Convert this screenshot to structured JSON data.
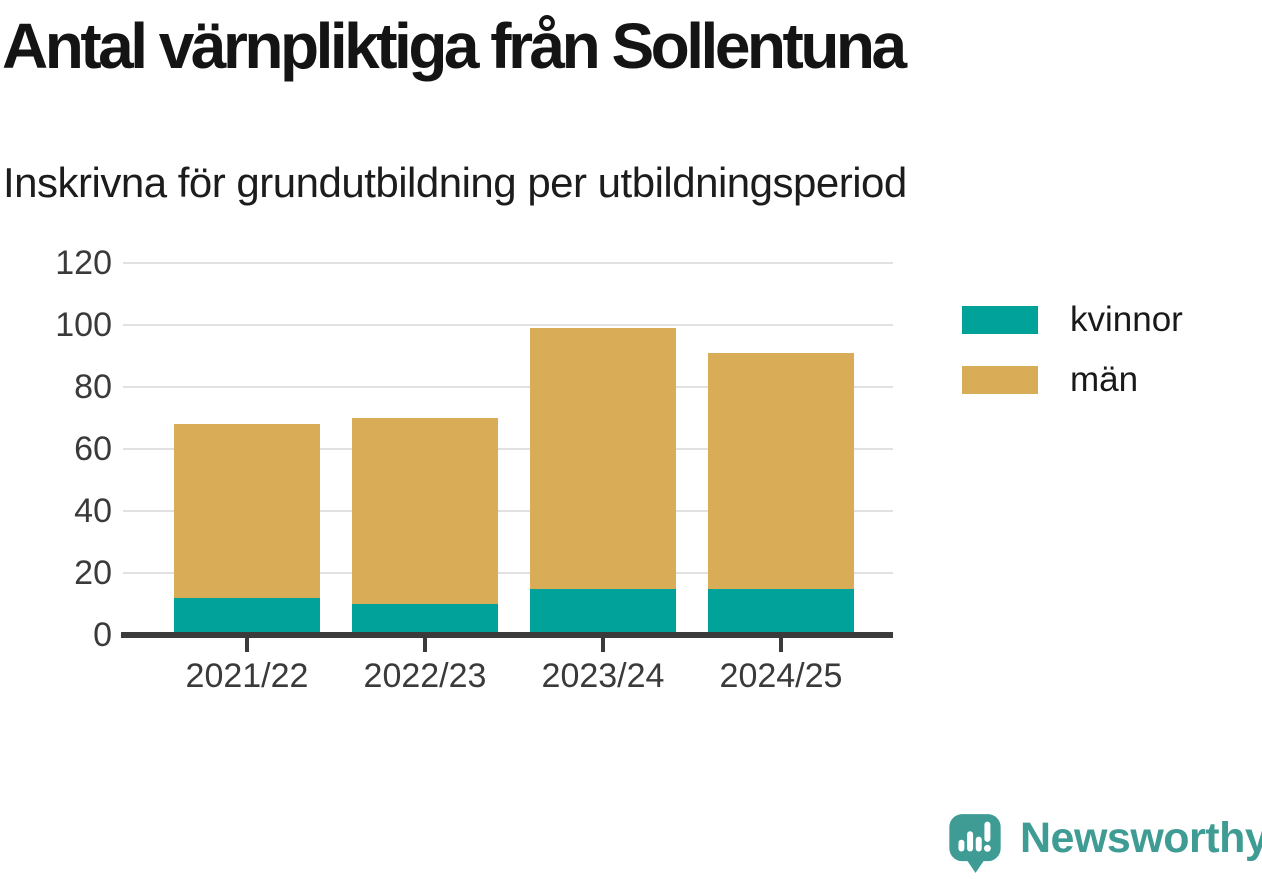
{
  "header": {
    "title": "Antal värnpliktiga från Sollentuna",
    "subtitle": "Inskrivna för grundutbildning per utbildningsperiod"
  },
  "chart_data": {
    "type": "bar",
    "stacked": true,
    "categories": [
      "2021/22",
      "2022/23",
      "2023/24",
      "2024/25"
    ],
    "series": [
      {
        "name": "kvinnor",
        "color": "#00A29A",
        "values": [
          12,
          10,
          15,
          15
        ]
      },
      {
        "name": "män",
        "color": "#D9AC58",
        "values": [
          56,
          60,
          84,
          76
        ]
      }
    ],
    "totals": [
      68,
      70,
      99,
      91
    ],
    "title": "Antal värnpliktiga från Sollentuna",
    "xlabel": "",
    "ylabel": "",
    "ylim": [
      0,
      120
    ],
    "yticks": [
      0,
      20,
      40,
      60,
      80,
      100,
      120
    ],
    "grid": true,
    "legend_position": "right"
  },
  "branding": {
    "logo_text": "Newsworthy",
    "color": "#3F9C94"
  }
}
